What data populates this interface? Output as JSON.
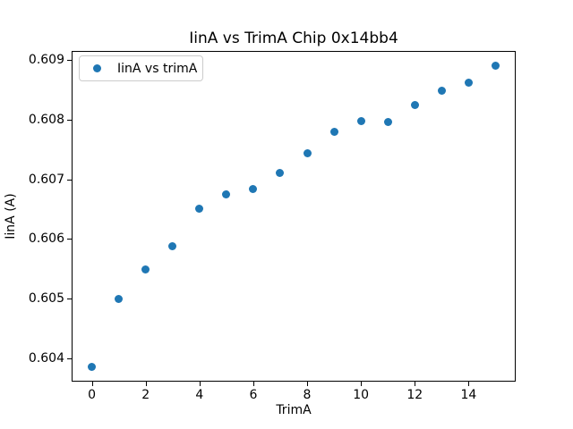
{
  "chart_data": {
    "type": "scatter",
    "title": "IinA vs TrimA Chip 0x14bb4",
    "xlabel": "TrimA",
    "ylabel": "IinA (A)",
    "legend": {
      "label": "IinA vs trimA",
      "position": "upper left"
    },
    "series": [
      {
        "name": "IinA vs trimA",
        "x": [
          0,
          1,
          2,
          3,
          4,
          5,
          6,
          7,
          8,
          9,
          10,
          11,
          12,
          13,
          14,
          15
        ],
        "y": [
          0.60386,
          0.605,
          0.60549,
          0.60588,
          0.6065,
          0.60674,
          0.60683,
          0.60711,
          0.60743,
          0.60779,
          0.60798,
          0.60796,
          0.60824,
          0.60848,
          0.60862,
          0.6089
        ]
      }
    ],
    "xlim": [
      -0.75,
      15.75
    ],
    "ylim": [
      0.603608,
      0.609152
    ],
    "xticks": [
      0,
      2,
      4,
      6,
      8,
      10,
      12,
      14
    ],
    "yticks": [
      0.604,
      0.605,
      0.606,
      0.607,
      0.608,
      0.609
    ],
    "ytick_decimals": 3,
    "marker_color": "#1f77b4",
    "grid": false,
    "background_color": "#ffffff",
    "spine_color": "#000000"
  }
}
